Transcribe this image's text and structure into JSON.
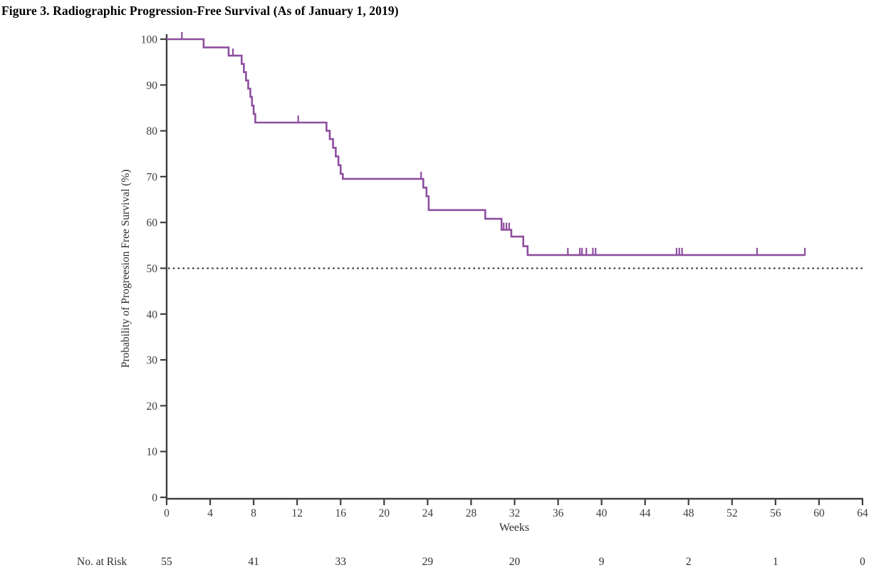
{
  "figure": {
    "title": "Figure 3. Radiographic Progression-Free Survival (As of January 1, 2019)"
  },
  "chart_data": {
    "type": "line",
    "subtype": "kaplan-meier-step-curve",
    "title": "Figure 3. Radiographic Progression-Free Survival (As of January 1, 2019)",
    "xlabel": "Weeks",
    "ylabel": "Probability of Progreesion Free Survival (%)",
    "xlim": [
      0,
      64
    ],
    "xticks": [
      0,
      4,
      8,
      12,
      16,
      20,
      24,
      28,
      32,
      36,
      40,
      44,
      48,
      52,
      56,
      60,
      64
    ],
    "ylim": [
      0,
      100
    ],
    "yticks": [
      0,
      10,
      20,
      30,
      40,
      50,
      60,
      70,
      80,
      90,
      100
    ],
    "grid": false,
    "legend": "none",
    "median_reference_line_pct": 50,
    "colors": {
      "curve": "#8e4f9f",
      "axis": "#3f3f3f",
      "tick_text": "#3d3d3d",
      "median_line": "#2b2b2b"
    },
    "series": [
      {
        "name": "Radiographic progression-free survival",
        "steps": [
          [
            0,
            100
          ],
          [
            3.4,
            100
          ],
          [
            3.4,
            98.2
          ],
          [
            5.7,
            98.2
          ],
          [
            5.7,
            96.4
          ],
          [
            6.9,
            96.4
          ],
          [
            6.9,
            94.6
          ],
          [
            7.1,
            94.6
          ],
          [
            7.1,
            92.8
          ],
          [
            7.3,
            92.8
          ],
          [
            7.3,
            91.0
          ],
          [
            7.5,
            91.0
          ],
          [
            7.5,
            89.2
          ],
          [
            7.7,
            89.2
          ],
          [
            7.7,
            87.4
          ],
          [
            7.85,
            87.4
          ],
          [
            7.85,
            85.5
          ],
          [
            8.0,
            85.5
          ],
          [
            8.0,
            83.7
          ],
          [
            8.15,
            83.7
          ],
          [
            8.15,
            81.8
          ],
          [
            14.7,
            81.8
          ],
          [
            14.7,
            80.0
          ],
          [
            15.0,
            80.0
          ],
          [
            15.0,
            78.2
          ],
          [
            15.3,
            78.2
          ],
          [
            15.3,
            76.3
          ],
          [
            15.55,
            76.3
          ],
          [
            15.55,
            74.4
          ],
          [
            15.8,
            74.4
          ],
          [
            15.8,
            72.5
          ],
          [
            16.0,
            72.5
          ],
          [
            16.0,
            70.6
          ],
          [
            16.2,
            70.6
          ],
          [
            16.2,
            69.5
          ],
          [
            23.6,
            69.5
          ],
          [
            23.6,
            67.6
          ],
          [
            23.9,
            67.6
          ],
          [
            23.9,
            65.7
          ],
          [
            24.1,
            65.7
          ],
          [
            24.1,
            62.7
          ],
          [
            29.3,
            62.7
          ],
          [
            29.3,
            60.8
          ],
          [
            30.8,
            60.8
          ],
          [
            30.8,
            58.4
          ],
          [
            31.7,
            58.4
          ],
          [
            31.7,
            56.9
          ],
          [
            32.8,
            56.9
          ],
          [
            32.8,
            54.8
          ],
          [
            33.2,
            54.8
          ],
          [
            33.2,
            52.9
          ],
          [
            58.7,
            52.9
          ]
        ],
        "censor_marks": [
          [
            1.4,
            100
          ],
          [
            6.1,
            96.4
          ],
          [
            12.1,
            81.8
          ],
          [
            23.4,
            69.5
          ],
          [
            31.0,
            58.4
          ],
          [
            31.25,
            58.4
          ],
          [
            31.5,
            58.4
          ],
          [
            36.9,
            52.9
          ],
          [
            38.0,
            52.9
          ],
          [
            38.2,
            52.9
          ],
          [
            38.6,
            52.9
          ],
          [
            39.2,
            52.9
          ],
          [
            39.45,
            52.9
          ],
          [
            46.9,
            52.9
          ],
          [
            47.15,
            52.9
          ],
          [
            47.4,
            52.9
          ],
          [
            54.3,
            52.9
          ],
          [
            58.7,
            52.9
          ]
        ]
      }
    ],
    "at_risk": {
      "label": "No. at Risk",
      "weeks": [
        0,
        8,
        16,
        24,
        32,
        40,
        48,
        56,
        64
      ],
      "values": [
        55,
        41,
        33,
        29,
        20,
        9,
        2,
        1,
        0
      ]
    }
  }
}
